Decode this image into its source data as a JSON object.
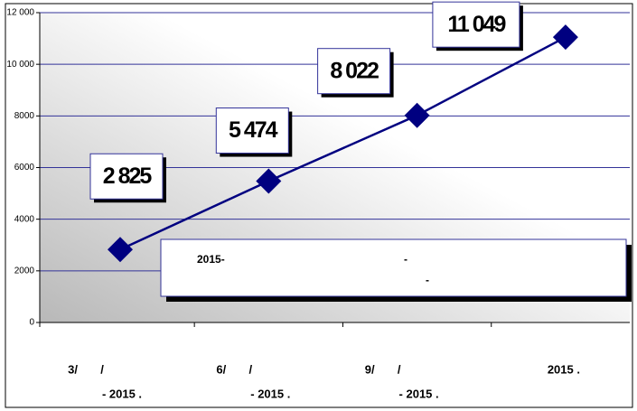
{
  "chart_data": {
    "type": "line",
    "categories": [
      [
        "3/       /",
        "- 2015 ."
      ],
      [
        "6/       /",
        "- 2015 ."
      ],
      [
        "9/       /",
        "- 2015 ."
      ],
      [
        "2015 ."
      ]
    ],
    "series": [
      {
        "color": "#000080",
        "values": [
          2825,
          5474,
          8022,
          11049
        ],
        "value_labels": [
          "2 825",
          "5 474",
          "8 022",
          "11 049"
        ]
      }
    ],
    "ylim": [
      0,
      12000
    ],
    "yticks": [
      0,
      2000,
      4000,
      6000,
      8000,
      {
        "value": 10000,
        "label": "10 000"
      },
      {
        "value": 12000,
        "label": "12 000"
      }
    ],
    "grid": true,
    "annotation": [
      "2015-",
      "-",
      "-"
    ]
  }
}
